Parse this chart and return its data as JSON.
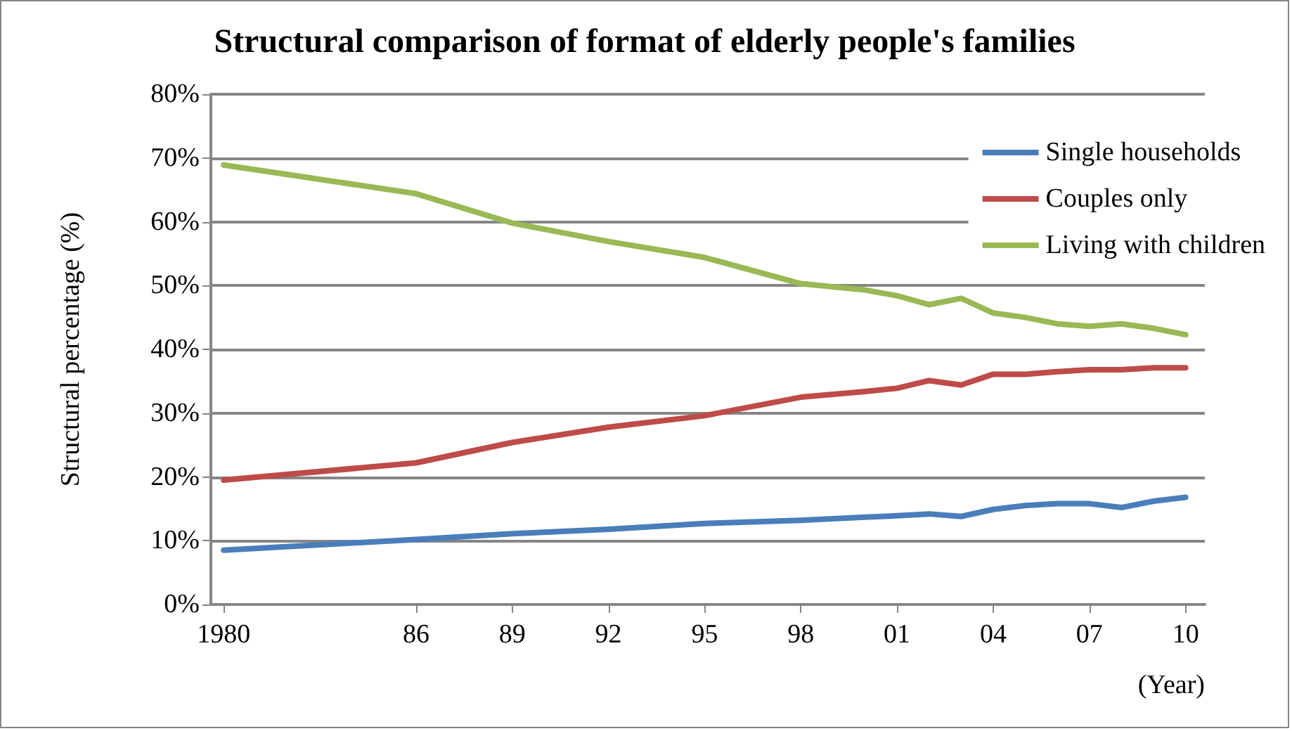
{
  "chart_data": {
    "type": "line",
    "title": "Structural comparison of format of elderly people's families",
    "xlabel": "(Year)",
    "ylabel": "Structural percentage (%)",
    "xlim": [
      1979.6,
      2010.6
    ],
    "xticks": [
      {
        "value": 1980,
        "label": "1980"
      },
      {
        "value": 1986,
        "label": "86"
      },
      {
        "value": 1989,
        "label": "89"
      },
      {
        "value": 1992,
        "label": "92"
      },
      {
        "value": 1995,
        "label": "95"
      },
      {
        "value": 1998,
        "label": "98"
      },
      {
        "value": 2001,
        "label": "01"
      },
      {
        "value": 2004,
        "label": "04"
      },
      {
        "value": 2007,
        "label": "07"
      },
      {
        "value": 2010,
        "label": "10"
      }
    ],
    "ylim": [
      0,
      80
    ],
    "yticks": [
      {
        "value": 0,
        "label": "0%"
      },
      {
        "value": 10,
        "label": "10%"
      },
      {
        "value": 20,
        "label": "20%"
      },
      {
        "value": 30,
        "label": "30%"
      },
      {
        "value": 40,
        "label": "40%"
      },
      {
        "value": 50,
        "label": "50%"
      },
      {
        "value": 60,
        "label": "60%"
      },
      {
        "value": 70,
        "label": "70%"
      },
      {
        "value": 80,
        "label": "80%"
      }
    ],
    "x": [
      1980,
      1986,
      1989,
      1992,
      1995,
      1998,
      2000,
      2001,
      2002,
      2003,
      2004,
      2005,
      2006,
      2007,
      2008,
      2009,
      2010
    ],
    "series": [
      {
        "name": "Single households",
        "color": "#4a7ebb",
        "values": [
          8.5,
          10.2,
          11.1,
          11.8,
          12.7,
          13.2,
          13.7,
          13.9,
          14.2,
          13.8,
          14.9,
          15.5,
          15.8,
          15.8,
          15.2,
          16.2,
          16.8
        ]
      },
      {
        "name": "Couples only",
        "color": "#be4b48",
        "values": [
          19.5,
          22.2,
          25.4,
          27.8,
          29.6,
          32.5,
          33.4,
          33.9,
          35.1,
          34.4,
          36.1,
          36.1,
          36.5,
          36.8,
          36.8,
          37.1,
          37.1
        ]
      },
      {
        "name": "Living with children",
        "color": "#98b954",
        "values": [
          68.9,
          64.4,
          59.8,
          56.9,
          54.4,
          50.3,
          49.3,
          48.4,
          47.0,
          48.0,
          45.7,
          45.0,
          44.0,
          43.6,
          44.0,
          43.3,
          42.3
        ]
      }
    ],
    "grid": "y",
    "legend": "top right",
    "marker": "none",
    "line_style": "solid"
  }
}
